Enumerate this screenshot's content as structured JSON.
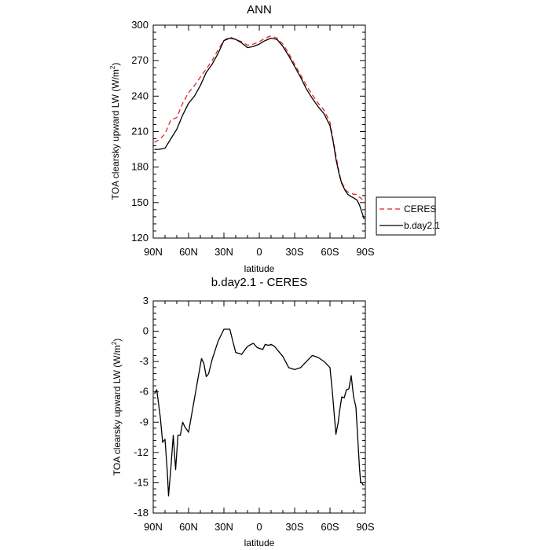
{
  "chart_data": [
    {
      "type": "line",
      "title": "ANN",
      "xlabel": "latitude",
      "ylabel": "TOA clearsky upward LW (W/m",
      "ylabel_sup": "2",
      "ylabel_close": ")",
      "xlim": [
        90,
        -90
      ],
      "ylim": [
        120,
        300
      ],
      "x_tick_values": [
        90,
        60,
        30,
        0,
        -30,
        -60,
        -90
      ],
      "x_tick_labels": [
        "90N",
        "60N",
        "30N",
        "0",
        "30S",
        "60S",
        "90S"
      ],
      "y_tick_values": [
        120,
        150,
        180,
        210,
        240,
        270,
        300
      ],
      "y_tick_labels": [
        "120",
        "150",
        "180",
        "210",
        "240",
        "270",
        "300"
      ],
      "legend": {
        "position": "right",
        "entries": [
          "CERES",
          "b.day2.1"
        ]
      },
      "series": [
        {
          "name": "CERES",
          "color": "#e8211e",
          "dash": "6,4",
          "x": [
            89,
            85,
            80,
            75,
            72,
            70,
            65,
            60,
            55,
            50,
            45,
            40,
            35,
            30,
            25,
            20,
            15,
            10,
            5,
            0,
            -5,
            -10,
            -15,
            -20,
            -25,
            -30,
            -35,
            -40,
            -45,
            -50,
            -55,
            -60,
            -65,
            -68,
            -70,
            -73,
            -75,
            -78,
            -80,
            -82,
            -84,
            -86,
            -88,
            -89
          ],
          "y": [
            201,
            203,
            208,
            220,
            221,
            222,
            234,
            243,
            249,
            256,
            263,
            270,
            279,
            287,
            290,
            288,
            286,
            283,
            284,
            286,
            289,
            291,
            289,
            284,
            276,
            267,
            258,
            249,
            241,
            234,
            228,
            218,
            190,
            174,
            167,
            161,
            159,
            158,
            157,
            157,
            155,
            154,
            152,
            151
          ]
        },
        {
          "name": "b.day2.1",
          "color": "#000000",
          "dash": "",
          "x": [
            89,
            85,
            80,
            75,
            70,
            65,
            60,
            55,
            50,
            45,
            40,
            35,
            30,
            25,
            20,
            15,
            10,
            5,
            0,
            -5,
            -10,
            -15,
            -20,
            -25,
            -30,
            -35,
            -40,
            -45,
            -50,
            -55,
            -60,
            -63,
            -65,
            -68,
            -70,
            -73,
            -75,
            -78,
            -80,
            -83,
            -85,
            -87,
            -89
          ],
          "y": [
            195,
            195,
            196,
            204,
            212,
            224,
            234,
            240,
            249,
            260,
            267,
            276,
            287,
            289,
            288,
            285,
            281,
            282,
            284,
            287,
            289,
            288,
            282,
            274,
            265,
            256,
            246,
            238,
            231,
            225,
            215,
            200,
            187,
            173,
            166,
            160,
            157,
            155,
            154,
            152,
            148,
            142,
            136
          ]
        }
      ]
    },
    {
      "type": "line",
      "title": "b.day2.1 - CERES",
      "xlabel": "latitude",
      "ylabel": "TOA clearsky upward LW (W/m",
      "ylabel_sup": "2",
      "ylabel_close": ")",
      "xlim": [
        90,
        -90
      ],
      "ylim": [
        -18,
        3
      ],
      "x_tick_values": [
        90,
        60,
        30,
        0,
        -30,
        -60,
        -90
      ],
      "x_tick_labels": [
        "90N",
        "60N",
        "30N",
        "0",
        "30S",
        "60S",
        "90S"
      ],
      "y_tick_values": [
        3,
        0,
        -3,
        -6,
        -9,
        -12,
        -15,
        -18
      ],
      "y_tick_labels": [
        "3",
        "0",
        "-3",
        "-6",
        "-9",
        "-12",
        "-15",
        "-18"
      ],
      "series": [
        {
          "color": "#000000",
          "dash": "",
          "x": [
            89,
            87,
            84,
            82,
            80,
            78,
            77,
            75,
            73,
            71,
            69,
            67,
            65,
            63,
            60,
            57,
            54,
            51,
            49,
            47,
            45,
            43,
            40,
            35,
            30,
            25,
            22,
            20,
            17,
            15,
            12,
            10,
            7,
            5,
            2,
            0,
            -3,
            -5,
            -8,
            -10,
            -13,
            -15,
            -20,
            -25,
            -30,
            -35,
            -40,
            -45,
            -50,
            -55,
            -60,
            -62,
            -65,
            -67,
            -68,
            -70,
            -72,
            -74,
            -76,
            -78,
            -80,
            -82,
            -84,
            -85,
            -86,
            -87,
            -88,
            -89
          ],
          "y": [
            -6.2,
            -5.8,
            -8.5,
            -11,
            -10.7,
            -14,
            -16.3,
            -13.5,
            -10.3,
            -13.7,
            -10.3,
            -10.3,
            -9,
            -9.5,
            -10,
            -8,
            -6,
            -4,
            -2.7,
            -3.2,
            -4.5,
            -4.2,
            -2.8,
            -1,
            0.2,
            0.2,
            -1.2,
            -2.1,
            -2.2,
            -2.3,
            -1.8,
            -1.5,
            -1.3,
            -1.2,
            -1.6,
            -1.7,
            -1.8,
            -1.3,
            -1.4,
            -1.3,
            -1.5,
            -1.8,
            -2.5,
            -3.6,
            -3.8,
            -3.6,
            -3.0,
            -2.4,
            -2.6,
            -3.0,
            -3.6,
            -6,
            -10.2,
            -9,
            -8,
            -6.5,
            -6.6,
            -5.8,
            -5.7,
            -4.4,
            -6.5,
            -7.5,
            -11.5,
            -13.5,
            -15,
            -15,
            -15.2,
            -15.2
          ]
        }
      ]
    }
  ]
}
